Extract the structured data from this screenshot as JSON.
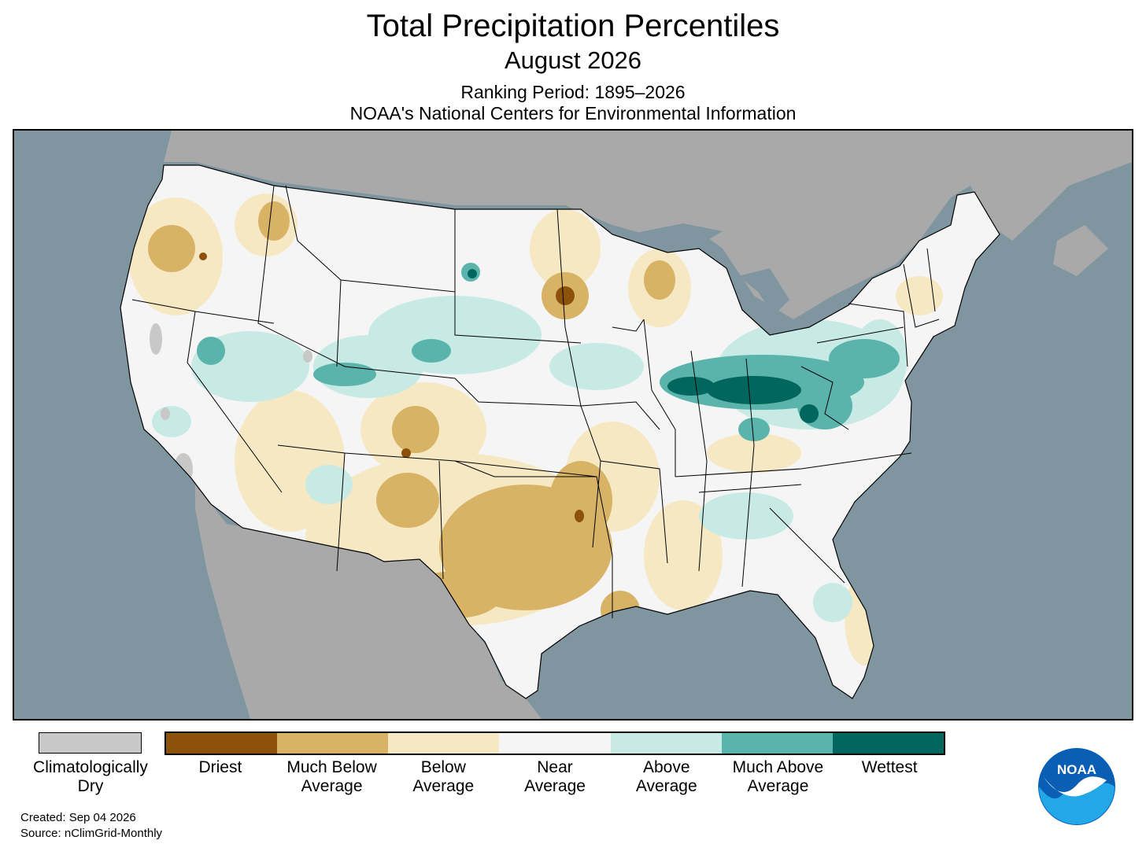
{
  "header": {
    "title": "Total Precipitation Percentiles",
    "subtitle": "August 2026",
    "ranking_period": "Ranking Period: 1895–2026",
    "organization": "NOAA's National Centers for Environmental Information"
  },
  "legend": {
    "dry": {
      "label": "Climatologically Dry",
      "color": "#c8c8c8"
    },
    "categories": [
      {
        "label": "Driest",
        "color": "#8c510a"
      },
      {
        "label": "Much Below Average",
        "color": "#d8b365"
      },
      {
        "label": "Below Average",
        "color": "#f6e8c3"
      },
      {
        "label": "Near Average",
        "color": "#f5f5f5"
      },
      {
        "label": "Above Average",
        "color": "#c7eae5"
      },
      {
        "label": "Much Above Average",
        "color": "#5ab4ac"
      },
      {
        "label": "Wettest",
        "color": "#01665e"
      }
    ]
  },
  "footer": {
    "created": "Created: Sep 04 2026",
    "source": "Source: nClimGrid-Monthly"
  },
  "logo": {
    "text": "NOAA"
  },
  "colors": {
    "water": "#7f96a0",
    "land_outside": "#a9a9a9",
    "near_average": "#f5f5f5"
  }
}
